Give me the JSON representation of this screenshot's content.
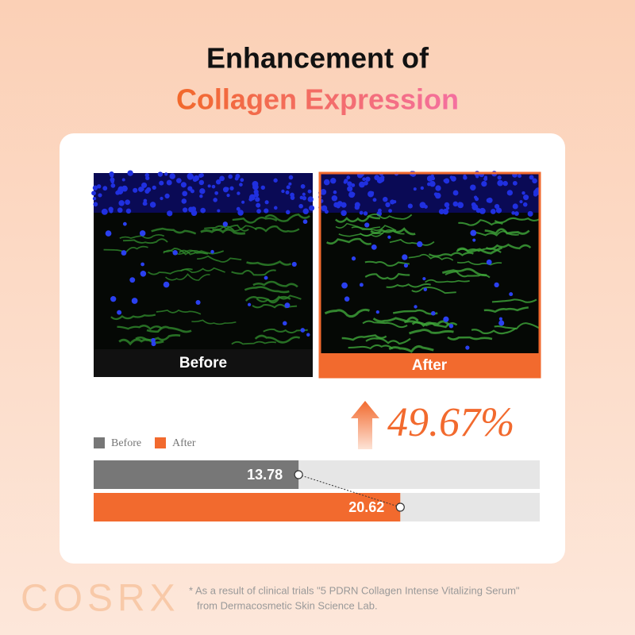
{
  "header": {
    "line1": "Enhancement of",
    "line2": "Collagen Expression"
  },
  "chart_data": {
    "type": "bar",
    "orientation": "horizontal",
    "categories": [
      "Before",
      "After"
    ],
    "values": [
      13.78,
      20.62
    ],
    "colors": [
      "#777777",
      "#f26a2e"
    ],
    "xlim": [
      0,
      30
    ],
    "annotation": "49.67%"
  },
  "footer": {
    "brand": "COSRX",
    "note_line1": "* As a result of clinical trials \"5 PDRN Collagen Intense Vitalizing Serum\"",
    "note_line2": "from Dermacosmetic Skin Science Lab."
  }
}
